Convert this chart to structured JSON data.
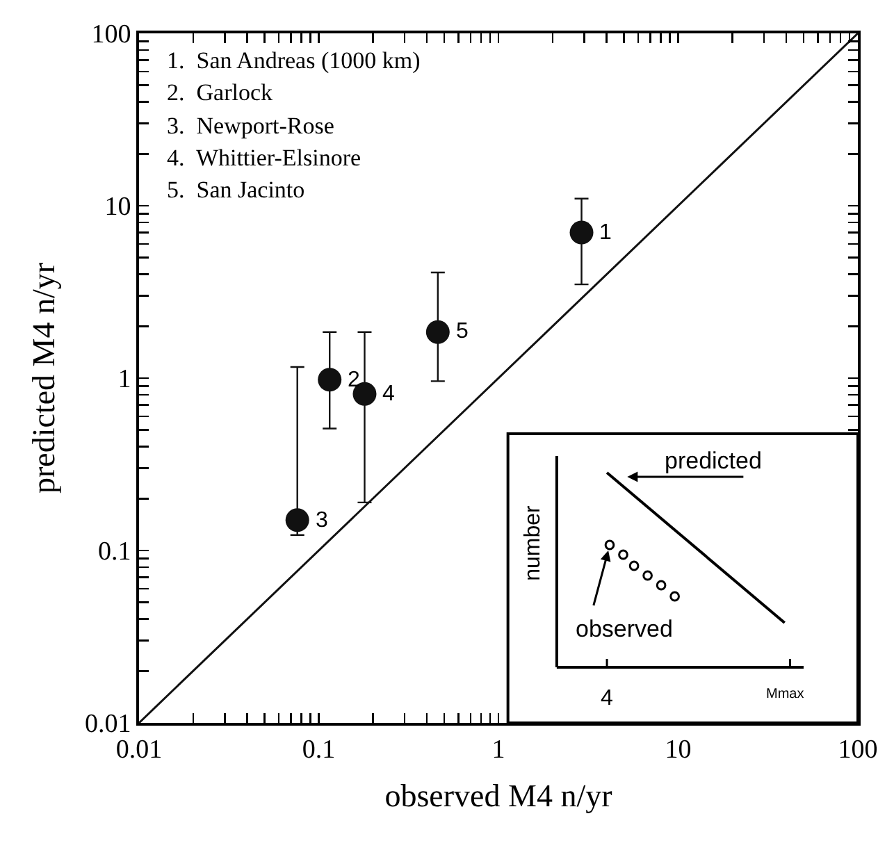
{
  "chart_data": {
    "type": "scatter",
    "xlabel": "observed M4 n/yr",
    "ylabel": "predicted M4 n/yr",
    "log": "xy",
    "legend": false,
    "xlim": [
      0.01,
      100
    ],
    "ylim": [
      0.01,
      100
    ],
    "xticks": [
      {
        "value": 0.01,
        "label": "0.01"
      },
      {
        "value": 0.02,
        "label": null
      },
      {
        "value": 0.03,
        "label": null
      },
      {
        "value": 0.04,
        "label": null
      },
      {
        "value": 0.05,
        "label": null
      },
      {
        "value": 0.06,
        "label": null
      },
      {
        "value": 0.07,
        "label": null
      },
      {
        "value": 0.08,
        "label": null
      },
      {
        "value": 0.09,
        "label": null
      },
      {
        "value": 0.1,
        "label": "0.1"
      },
      {
        "value": 0.2,
        "label": null
      },
      {
        "value": 0.3,
        "label": null
      },
      {
        "value": 0.4,
        "label": null
      },
      {
        "value": 0.5,
        "label": null
      },
      {
        "value": 0.6,
        "label": null
      },
      {
        "value": 0.7,
        "label": null
      },
      {
        "value": 0.8,
        "label": null
      },
      {
        "value": 0.9,
        "label": null
      },
      1,
      {
        "value": 2,
        "label": null
      },
      {
        "value": 3,
        "label": null
      },
      {
        "value": 4,
        "label": null
      },
      {
        "value": 5,
        "label": null
      },
      {
        "value": 6,
        "label": null
      },
      {
        "value": 7,
        "label": null
      },
      {
        "value": 8,
        "label": null
      },
      {
        "value": 9,
        "label": null
      },
      10,
      {
        "value": 20,
        "label": null
      },
      {
        "value": 30,
        "label": null
      },
      {
        "value": 40,
        "label": null
      },
      {
        "value": 50,
        "label": null
      },
      {
        "value": 60,
        "label": null
      },
      {
        "value": 70,
        "label": null
      },
      {
        "value": 80,
        "label": null
      },
      {
        "value": 90,
        "label": null
      },
      100
    ],
    "yticks": [
      {
        "value": 0.01,
        "label": "0.01"
      },
      {
        "value": 0.02,
        "label": null
      },
      {
        "value": 0.03,
        "label": null
      },
      {
        "value": 0.04,
        "label": null
      },
      {
        "value": 0.05,
        "label": null
      },
      {
        "value": 0.06,
        "label": null
      },
      {
        "value": 0.07,
        "label": null
      },
      {
        "value": 0.08,
        "label": null
      },
      {
        "value": 0.09,
        "label": null
      },
      {
        "value": 0.1,
        "label": "0.1"
      },
      {
        "value": 0.2,
        "label": null
      },
      {
        "value": 0.3,
        "label": null
      },
      {
        "value": 0.4,
        "label": null
      },
      {
        "value": 0.5,
        "label": null
      },
      {
        "value": 0.6,
        "label": null
      },
      {
        "value": 0.7,
        "label": null
      },
      {
        "value": 0.8,
        "label": null
      },
      {
        "value": 0.9,
        "label": null
      },
      1,
      {
        "value": 2,
        "label": null
      },
      {
        "value": 3,
        "label": null
      },
      {
        "value": 4,
        "label": null
      },
      {
        "value": 5,
        "label": null
      },
      {
        "value": 6,
        "label": null
      },
      {
        "value": 7,
        "label": null
      },
      {
        "value": 8,
        "label": null
      },
      {
        "value": 9,
        "label": null
      },
      10,
      {
        "value": 20,
        "label": null
      },
      {
        "value": 30,
        "label": null
      },
      {
        "value": 40,
        "label": null
      },
      {
        "value": 50,
        "label": null
      },
      {
        "value": 60,
        "label": null
      },
      {
        "value": 70,
        "label": null
      },
      {
        "value": 80,
        "label": null
      },
      {
        "value": 90,
        "label": null
      },
      100
    ],
    "series": [
      {
        "marker": "circle",
        "color": "#111111",
        "x": [
          2.9,
          0.115,
          0.076,
          0.18,
          0.46
        ],
        "values": [
          7.0,
          0.98,
          0.15,
          0.81,
          1.85
        ],
        "errors": [
          [
            3.5,
            11
          ],
          [
            0.51,
            1.85
          ],
          [
            0.123,
            1.16
          ],
          [
            0.19,
            1.85
          ],
          [
            0.96,
            4.1
          ]
        ]
      },
      {
        "type": "line",
        "marker": "none",
        "color": "#111111",
        "x": [
          0.01,
          100
        ],
        "values": [
          0.01,
          100
        ]
      }
    ],
    "annotations": [
      "1.  San Andreas (1000 km)",
      "2.  Garlock",
      "3.  Newport-Rose",
      "4.  Whittier-Elsinore",
      "5.  San Jacinto",
      "predicted",
      "observed",
      "number",
      "4",
      "Mmax",
      {
        "text": "1",
        "x": 2.9,
        "y": 7.0
      },
      {
        "text": "2",
        "x": 0.115,
        "y": 0.98
      },
      {
        "text": "3",
        "x": 0.076,
        "y": 0.15
      },
      {
        "text": "4",
        "x": 0.18,
        "y": 0.81
      },
      {
        "text": "5",
        "x": 0.46,
        "y": 1.85
      }
    ]
  }
}
